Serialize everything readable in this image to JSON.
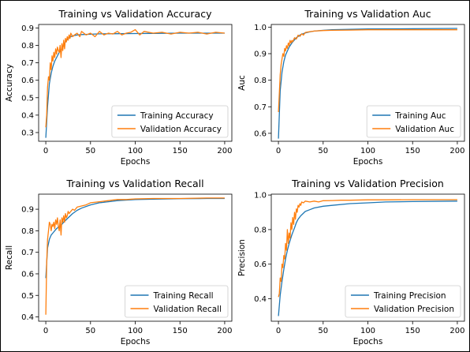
{
  "chart_data": [
    {
      "type": "line",
      "title": "Training vs Validation Accuracy",
      "xlabel": "Epochs",
      "ylabel": "Accuracy",
      "xlim": [
        -8,
        208
      ],
      "ylim": [
        0.25,
        0.92
      ],
      "xticks": [
        0,
        50,
        100,
        150,
        200
      ],
      "yticks": [
        0.3,
        0.4,
        0.5,
        0.6,
        0.7,
        0.8,
        0.9
      ],
      "ytick_labels": [
        "0.3",
        "0.4",
        "0.5",
        "0.6",
        "0.7",
        "0.8",
        "0.9"
      ],
      "legend_loc": "lower-right",
      "series": [
        {
          "name": "Training Accuracy",
          "color": "#1f77b4",
          "x": [
            0,
            2,
            4,
            6,
            8,
            10,
            12,
            15,
            18,
            20,
            22,
            25,
            28,
            30,
            35,
            40,
            50,
            60,
            80,
            100,
            120,
            150,
            180,
            200
          ],
          "y": [
            0.27,
            0.45,
            0.58,
            0.64,
            0.68,
            0.71,
            0.73,
            0.76,
            0.78,
            0.8,
            0.82,
            0.84,
            0.85,
            0.855,
            0.86,
            0.862,
            0.864,
            0.866,
            0.867,
            0.868,
            0.869,
            0.87,
            0.87,
            0.87
          ]
        },
        {
          "name": "Validation Accuracy",
          "color": "#ff7f0e",
          "x": [
            0,
            1,
            2,
            3,
            4,
            5,
            6,
            7,
            8,
            9,
            10,
            11,
            12,
            13,
            14,
            15,
            16,
            17,
            18,
            19,
            20,
            21,
            22,
            23,
            24,
            25,
            26,
            27,
            28,
            30,
            32,
            35,
            38,
            40,
            45,
            50,
            55,
            60,
            65,
            70,
            75,
            80,
            85,
            90,
            95,
            100,
            105,
            110,
            120,
            130,
            140,
            150,
            160,
            170,
            180,
            190,
            200
          ],
          "y": [
            0.33,
            0.4,
            0.56,
            0.62,
            0.6,
            0.7,
            0.66,
            0.74,
            0.71,
            0.76,
            0.73,
            0.78,
            0.75,
            0.79,
            0.77,
            0.76,
            0.8,
            0.73,
            0.81,
            0.77,
            0.83,
            0.78,
            0.84,
            0.82,
            0.85,
            0.83,
            0.86,
            0.84,
            0.87,
            0.85,
            0.86,
            0.87,
            0.85,
            0.88,
            0.86,
            0.87,
            0.85,
            0.88,
            0.86,
            0.87,
            0.865,
            0.88,
            0.86,
            0.87,
            0.875,
            0.89,
            0.86,
            0.88,
            0.87,
            0.875,
            0.865,
            0.875,
            0.87,
            0.875,
            0.865,
            0.875,
            0.87
          ]
        }
      ]
    },
    {
      "type": "line",
      "title": "Training vs Validation Auc",
      "xlabel": "Epochs",
      "ylabel": "Auc",
      "xlim": [
        -8,
        208
      ],
      "ylim": [
        0.57,
        1.01
      ],
      "xticks": [
        0,
        50,
        100,
        150,
        200
      ],
      "yticks": [
        0.6,
        0.7,
        0.8,
        0.9,
        1.0
      ],
      "ytick_labels": [
        "0.6",
        "0.7",
        "0.8",
        "0.9",
        "1.0"
      ],
      "legend_loc": "lower-right",
      "series": [
        {
          "name": "Training Auc",
          "color": "#1f77b4",
          "x": [
            0,
            2,
            4,
            6,
            8,
            10,
            12,
            15,
            18,
            20,
            25,
            30,
            35,
            40,
            50,
            60,
            80,
            100,
            150,
            200
          ],
          "y": [
            0.58,
            0.76,
            0.83,
            0.87,
            0.895,
            0.91,
            0.925,
            0.94,
            0.952,
            0.96,
            0.972,
            0.978,
            0.982,
            0.985,
            0.988,
            0.99,
            0.992,
            0.993,
            0.994,
            0.995
          ]
        },
        {
          "name": "Validation Auc",
          "color": "#ff7f0e",
          "x": [
            0,
            1,
            2,
            3,
            4,
            5,
            6,
            7,
            8,
            9,
            10,
            11,
            12,
            13,
            14,
            15,
            16,
            18,
            20,
            22,
            24,
            26,
            28,
            30,
            35,
            40,
            50,
            60,
            80,
            100,
            150,
            200
          ],
          "y": [
            0.68,
            0.75,
            0.82,
            0.86,
            0.88,
            0.9,
            0.89,
            0.92,
            0.91,
            0.93,
            0.92,
            0.94,
            0.93,
            0.95,
            0.94,
            0.95,
            0.945,
            0.96,
            0.955,
            0.97,
            0.965,
            0.975,
            0.97,
            0.98,
            0.983,
            0.985,
            0.987,
            0.988,
            0.989,
            0.99,
            0.99,
            0.99
          ]
        }
      ]
    },
    {
      "type": "line",
      "title": "Training vs Validation Recall",
      "xlabel": "Epochs",
      "ylabel": "Recall",
      "xlim": [
        -8,
        208
      ],
      "ylim": [
        0.38,
        0.97
      ],
      "xticks": [
        0,
        50,
        100,
        150,
        200
      ],
      "yticks": [
        0.4,
        0.5,
        0.6,
        0.7,
        0.8,
        0.9
      ],
      "ytick_labels": [
        "0.4",
        "0.5",
        "0.6",
        "0.7",
        "0.8",
        "0.9"
      ],
      "legend_loc": "lower-right",
      "series": [
        {
          "name": "Training Recall",
          "color": "#1f77b4",
          "x": [
            0,
            2,
            4,
            6,
            8,
            10,
            12,
            15,
            18,
            20,
            25,
            30,
            35,
            40,
            50,
            60,
            70,
            80,
            100,
            120,
            150,
            180,
            200
          ],
          "y": [
            0.58,
            0.72,
            0.76,
            0.78,
            0.79,
            0.8,
            0.81,
            0.82,
            0.83,
            0.84,
            0.86,
            0.88,
            0.895,
            0.905,
            0.92,
            0.93,
            0.935,
            0.94,
            0.945,
            0.947,
            0.949,
            0.95,
            0.95
          ]
        },
        {
          "name": "Validation Recall",
          "color": "#ff7f0e",
          "x": [
            0,
            1,
            2,
            3,
            4,
            5,
            6,
            7,
            8,
            9,
            10,
            11,
            12,
            13,
            14,
            15,
            16,
            17,
            18,
            19,
            20,
            21,
            22,
            23,
            24,
            25,
            26,
            28,
            30,
            32,
            35,
            40,
            45,
            50,
            60,
            70,
            80,
            90,
            100,
            120,
            150,
            180,
            200
          ],
          "y": [
            0.41,
            0.65,
            0.76,
            0.8,
            0.84,
            0.83,
            0.8,
            0.83,
            0.82,
            0.84,
            0.81,
            0.85,
            0.83,
            0.86,
            0.82,
            0.8,
            0.85,
            0.78,
            0.86,
            0.84,
            0.87,
            0.84,
            0.88,
            0.86,
            0.87,
            0.89,
            0.88,
            0.89,
            0.9,
            0.895,
            0.91,
            0.915,
            0.92,
            0.93,
            0.935,
            0.94,
            0.945,
            0.945,
            0.948,
            0.95,
            0.95,
            0.952,
            0.952
          ]
        }
      ]
    },
    {
      "type": "line",
      "title": "Training vs Validation Precision",
      "xlabel": "Epochs",
      "ylabel": "Precision",
      "xlim": [
        -8,
        208
      ],
      "ylim": [
        0.27,
        1.005
      ],
      "xticks": [
        0,
        50,
        100,
        150,
        200
      ],
      "yticks": [
        0.4,
        0.6,
        0.8,
        1.0
      ],
      "ytick_labels": [
        "0.4",
        "0.6",
        "0.8",
        "1.0"
      ],
      "legend_loc": "lower-right",
      "series": [
        {
          "name": "Training Precision",
          "color": "#1f77b4",
          "x": [
            0,
            2,
            4,
            6,
            8,
            10,
            12,
            15,
            18,
            20,
            22,
            25,
            28,
            30,
            35,
            40,
            50,
            60,
            80,
            100,
            120,
            150,
            200
          ],
          "y": [
            0.3,
            0.42,
            0.5,
            0.57,
            0.63,
            0.68,
            0.72,
            0.77,
            0.81,
            0.84,
            0.86,
            0.88,
            0.895,
            0.905,
            0.915,
            0.925,
            0.935,
            0.94,
            0.95,
            0.955,
            0.96,
            0.962,
            0.965
          ]
        },
        {
          "name": "Validation Precision",
          "color": "#ff7f0e",
          "x": [
            0,
            1,
            2,
            3,
            4,
            5,
            6,
            7,
            8,
            9,
            10,
            11,
            12,
            13,
            14,
            15,
            16,
            17,
            18,
            19,
            20,
            21,
            22,
            23,
            24,
            25,
            26,
            28,
            30,
            35,
            40,
            45,
            50,
            60,
            70,
            80,
            100,
            120,
            150,
            180,
            200
          ],
          "y": [
            0.41,
            0.43,
            0.52,
            0.5,
            0.6,
            0.58,
            0.65,
            0.63,
            0.72,
            0.68,
            0.8,
            0.72,
            0.78,
            0.75,
            0.84,
            0.8,
            0.87,
            0.83,
            0.9,
            0.86,
            0.92,
            0.9,
            0.94,
            0.93,
            0.95,
            0.94,
            0.96,
            0.955,
            0.965,
            0.96,
            0.965,
            0.96,
            0.967,
            0.968,
            0.97,
            0.97,
            0.972,
            0.972,
            0.973,
            0.973,
            0.973
          ]
        }
      ]
    }
  ]
}
